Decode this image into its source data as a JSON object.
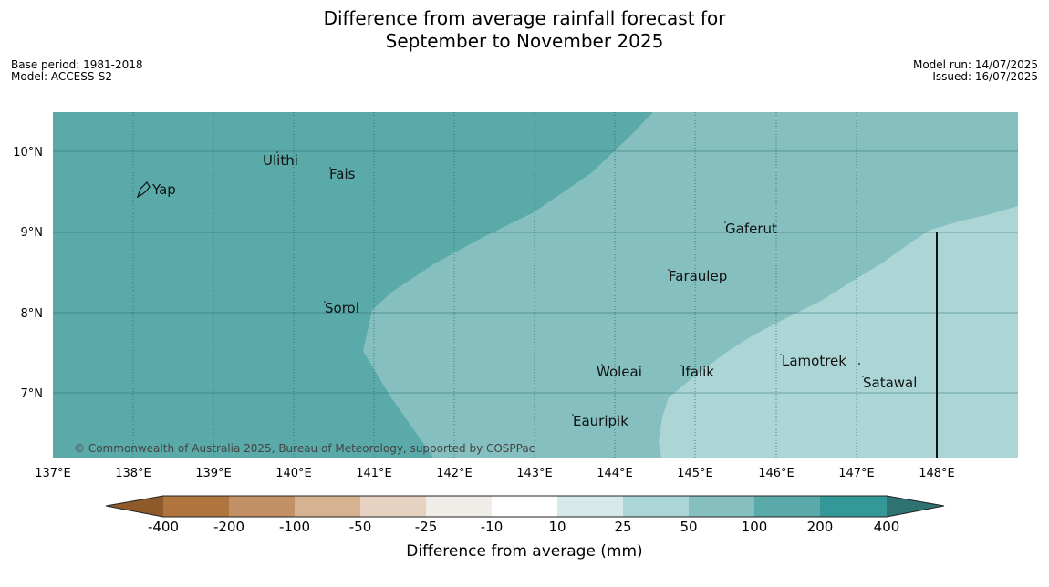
{
  "title": {
    "line1": "Difference from average rainfall forecast for",
    "line2": "September to November 2025"
  },
  "meta": {
    "base_period": "Base period: 1981-2018",
    "model": "Model: ACCESS-S2",
    "model_run": "Model run: 14/07/2025",
    "issued": "Issued: 16/07/2025"
  },
  "map": {
    "copyright": "© Commonwealth of Australia 2025, Bureau of Meteorology, supported by COSPPac",
    "lat_labels": [
      "10°N",
      "9°N",
      "8°N",
      "7°N"
    ],
    "lon_labels": [
      "137°E",
      "138°E",
      "139°E",
      "140°E",
      "141°E",
      "142°E",
      "143°E",
      "144°E",
      "145°E",
      "146°E",
      "147°E",
      "148°E"
    ],
    "places": {
      "yap": "Yap",
      "ulithi": "Ulithi",
      "fais": "Fais",
      "gaferut": "Gaferut",
      "faraulep": "Faraulep",
      "sorol": "Sorol",
      "woleai": "Woleai",
      "ifalik": "Ifalik",
      "lamotrek": "Lamotrek",
      "satawal": "Satawal",
      "eauripik": "Eauripik"
    }
  },
  "colorbar": {
    "title": "Difference from average (mm)",
    "ticks": [
      "-400",
      "-200",
      "-100",
      "-50",
      "-25",
      "-10",
      "10",
      "25",
      "50",
      "100",
      "200",
      "400"
    ],
    "colors": {
      "below_400": "#8e5a2a",
      "m400_m200": "#b0743e",
      "m200_m100": "#c39066",
      "m100_m50": "#d6b290",
      "m50_m25": "#e5d2c0",
      "m25_m10": "#f0ece8",
      "m10_10": "#ffffff",
      "p10_25": "#d6eaea",
      "p25_50": "#acd6d6",
      "p50_100": "#85bfbf",
      "p100_200": "#5baaaa",
      "p200_400": "#349898",
      "above_400": "#2f7272"
    }
  }
}
